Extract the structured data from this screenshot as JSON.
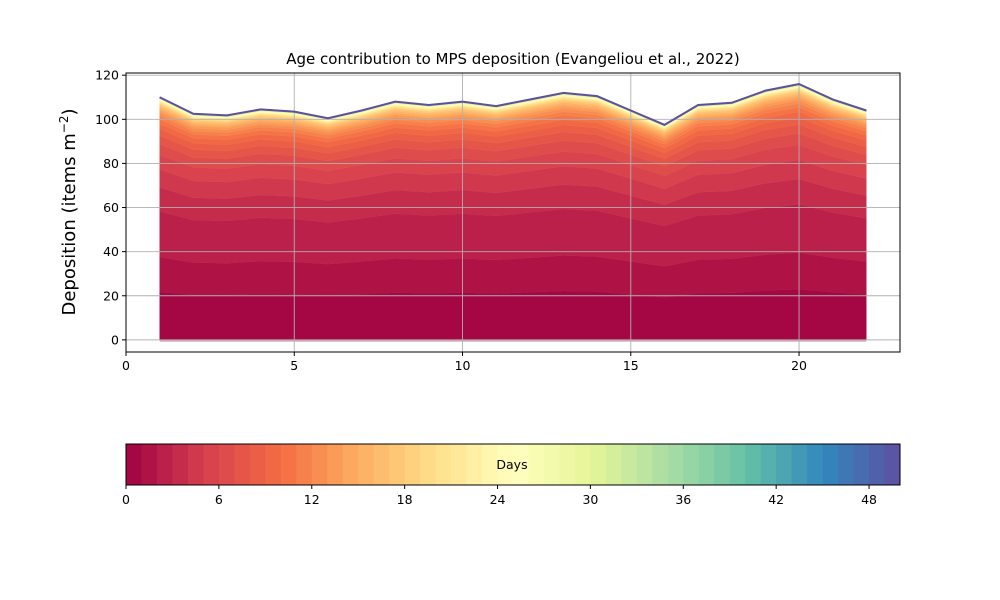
{
  "chart_data": {
    "type": "area",
    "title": "Age contribution to MPS deposition (Evangeliou et al., 2022)",
    "xlabel": "",
    "ylabel": "Deposition (items m",
    "ylabel_sup": "−2",
    "ylabel_end": ")",
    "xlim": [
      0,
      23
    ],
    "ylim": [
      -5.5,
      121
    ],
    "grid": true,
    "x_ticks": [
      "0",
      "5",
      "10",
      "15",
      "20"
    ],
    "y_ticks": [
      "0",
      "20",
      "40",
      "60",
      "80",
      "100",
      "120"
    ],
    "x": [
      1,
      2,
      3,
      4,
      5,
      6,
      7,
      8,
      9,
      10,
      11,
      12,
      13,
      14,
      15,
      16,
      17,
      18,
      19,
      20,
      21,
      22
    ],
    "total": [
      110,
      102.5,
      101.8,
      104.5,
      103.5,
      100.5,
      104,
      108,
      106.5,
      108,
      106,
      109,
      112,
      110.5,
      104,
      97.5,
      106.5,
      107.5,
      113,
      116,
      109,
      104
    ],
    "stack_note": "stacked areas by age (days 0-49), colored by Spectral colormap",
    "age_profile": [
      0.2,
      0.145,
      0.19,
      0.1,
      0.075,
      0.06,
      0.045,
      0.035,
      0.028,
      0.022,
      0.018,
      0.015,
      0.012,
      0.01,
      0.008,
      0.007,
      0.006,
      0.005,
      0.004,
      0.0035,
      0.003,
      0.0025,
      0.002,
      0.0018,
      0.0016,
      0.0014,
      0.0012,
      0.001,
      0.0009,
      0.0008,
      0.0007,
      0.0006,
      0.0005,
      0.0005,
      0.0004,
      0.0004,
      0.0003,
      0.0003,
      0.0003,
      0.0002,
      0.0002,
      0.0002,
      0.0002,
      0.0001,
      0.0001,
      0.0001,
      0.0001,
      0.0001,
      0.0001,
      0.0001
    ],
    "colorbar": {
      "label": "Days",
      "ticks": [
        "0",
        "6",
        "12",
        "18",
        "24",
        "30",
        "36",
        "42",
        "48"
      ],
      "range": [
        0,
        50
      ],
      "n_levels": 50
    }
  }
}
